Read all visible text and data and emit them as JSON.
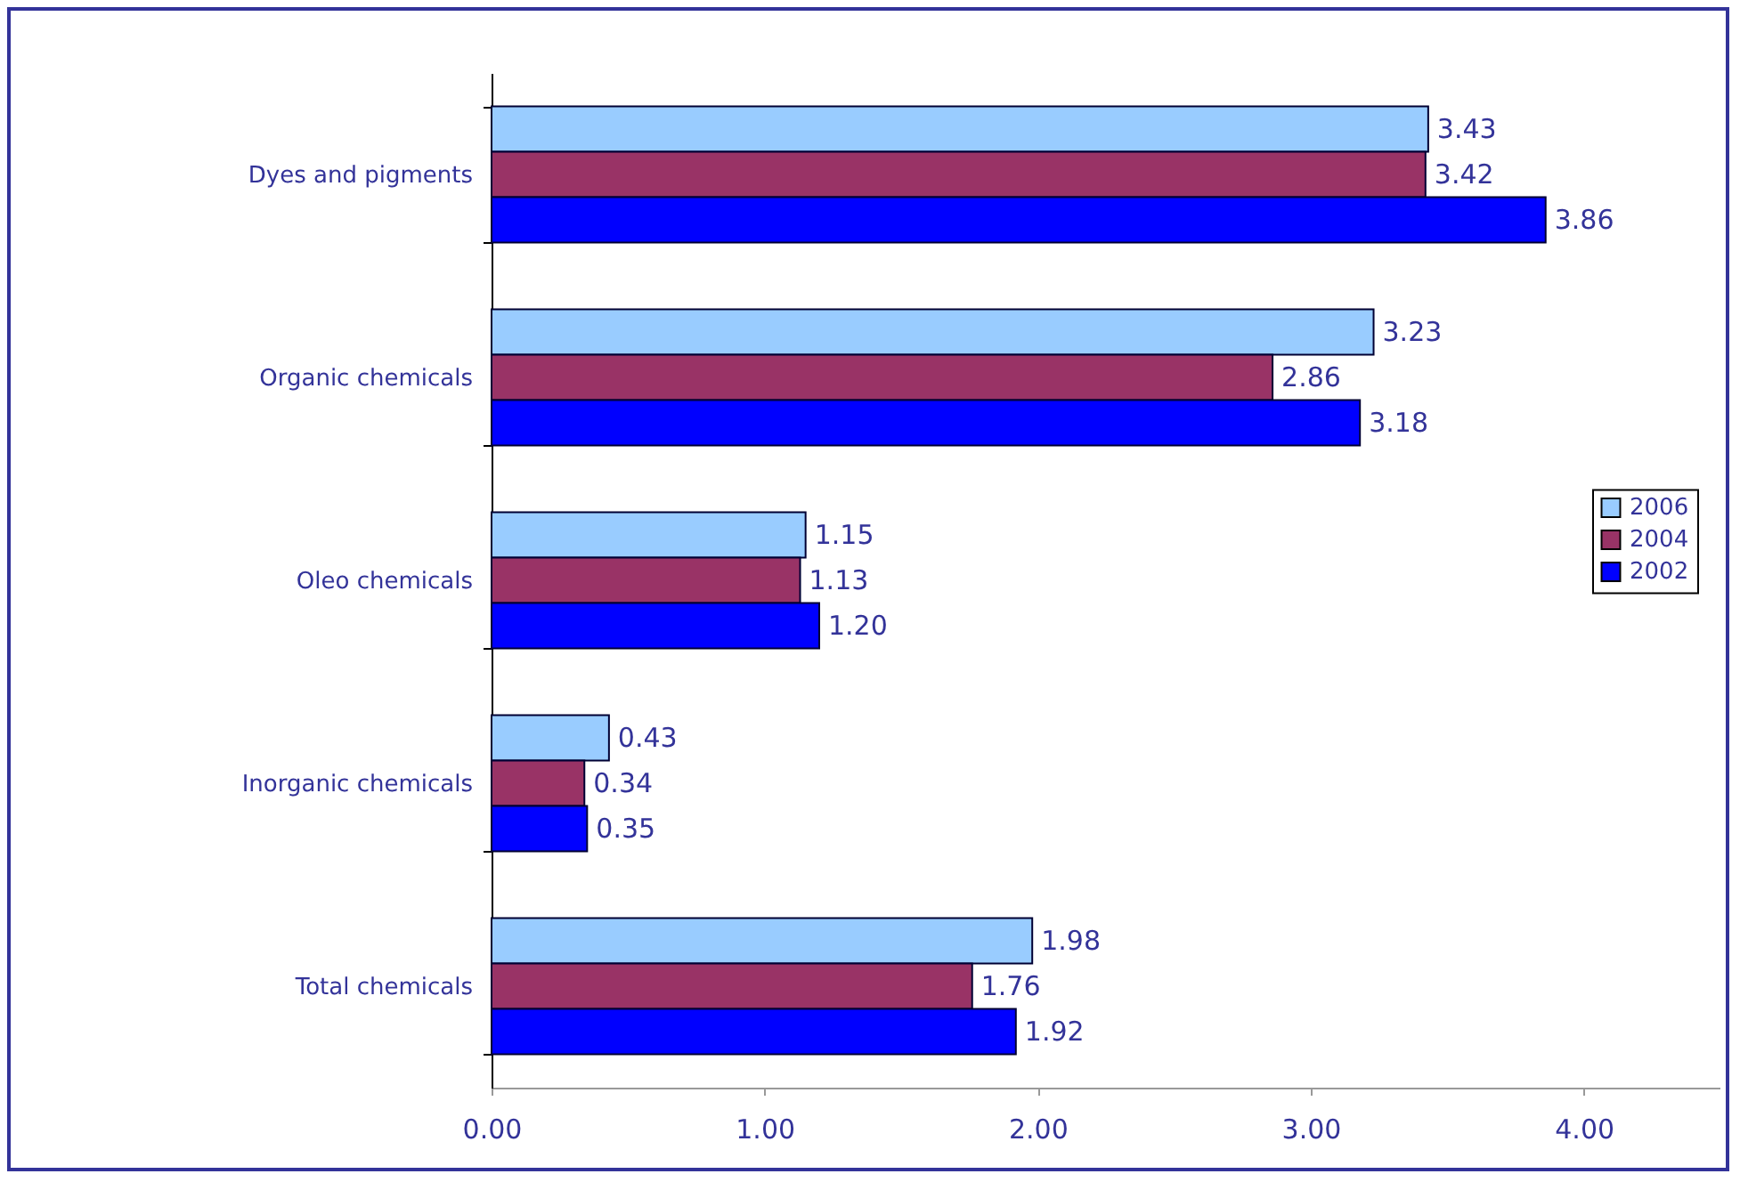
{
  "chart_data": {
    "type": "bar",
    "orientation": "horizontal",
    "categories": [
      "Dyes and pigments",
      "Organic chemicals",
      "Oleo chemicals",
      "Inorganic chemicals",
      "Total chemicals"
    ],
    "series": [
      {
        "name": "2006",
        "color": "#99ccff",
        "values": [
          3.43,
          3.23,
          1.15,
          0.43,
          1.98
        ],
        "value_labels": [
          "3.43",
          "3.23",
          "1.15",
          "0.43",
          "1.98"
        ]
      },
      {
        "name": "2004",
        "color": "#993366",
        "values": [
          3.42,
          2.86,
          1.13,
          0.34,
          1.76
        ],
        "value_labels": [
          "3.42",
          "2.86",
          "1.13",
          "0.34",
          "1.76"
        ]
      },
      {
        "name": "2002",
        "color": "#0000ff",
        "values": [
          3.86,
          3.18,
          1.2,
          0.35,
          1.92
        ],
        "value_labels": [
          "3.86",
          "3.18",
          "1.20",
          "0.35",
          "1.92"
        ]
      }
    ],
    "xlim": [
      0,
      4.5
    ],
    "xticks": [
      {
        "value": 0,
        "label": "0.00"
      },
      {
        "value": 1,
        "label": "1.00"
      },
      {
        "value": 2,
        "label": "2.00"
      },
      {
        "value": 3,
        "label": "3.00"
      },
      {
        "value": 4,
        "label": "4.00"
      }
    ],
    "grid": false,
    "legend": "right"
  }
}
